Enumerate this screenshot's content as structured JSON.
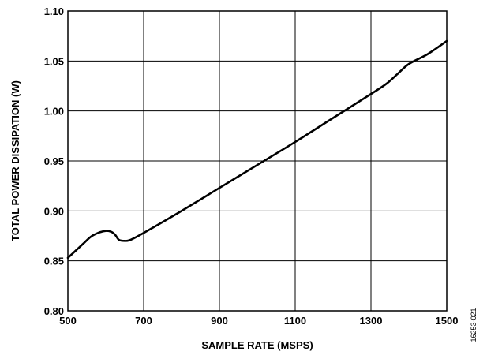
{
  "chart_data": {
    "type": "line",
    "title": "",
    "xlabel": "SAMPLE RATE (MSPS)",
    "ylabel": "TOTAL POWER DISSIPATION (W)",
    "xlim": [
      500,
      1500
    ],
    "ylim": [
      0.8,
      1.1
    ],
    "x_ticks": [
      500,
      700,
      900,
      1100,
      1300,
      1500
    ],
    "x_tick_labels": [
      "500",
      "700",
      "900",
      "1100",
      "1300",
      "1500"
    ],
    "y_ticks": [
      0.8,
      0.85,
      0.9,
      0.95,
      1.0,
      1.05,
      1.1
    ],
    "y_tick_labels": [
      "0.80",
      "0.85",
      "0.90",
      "0.95",
      "1.00",
      "1.05",
      "1.10"
    ],
    "grid": true,
    "legend": "none",
    "figure_id": "16253-021",
    "colors": {
      "line": "#000000",
      "grid": "#000000",
      "background": "#ffffff"
    },
    "series": [
      {
        "x": [
          500,
          520,
          540,
          560,
          580,
          600,
          615,
          625,
          635,
          650,
          665,
          700,
          800,
          900,
          1000,
          1100,
          1200,
          1300,
          1340,
          1370,
          1400,
          1450,
          1500
        ],
        "y": [
          0.853,
          0.86,
          0.867,
          0.874,
          0.878,
          0.88,
          0.879,
          0.876,
          0.871,
          0.87,
          0.871,
          0.878,
          0.9,
          0.923,
          0.946,
          0.969,
          0.993,
          1.017,
          1.027,
          1.037,
          1.047,
          1.057,
          1.07
        ]
      }
    ]
  }
}
